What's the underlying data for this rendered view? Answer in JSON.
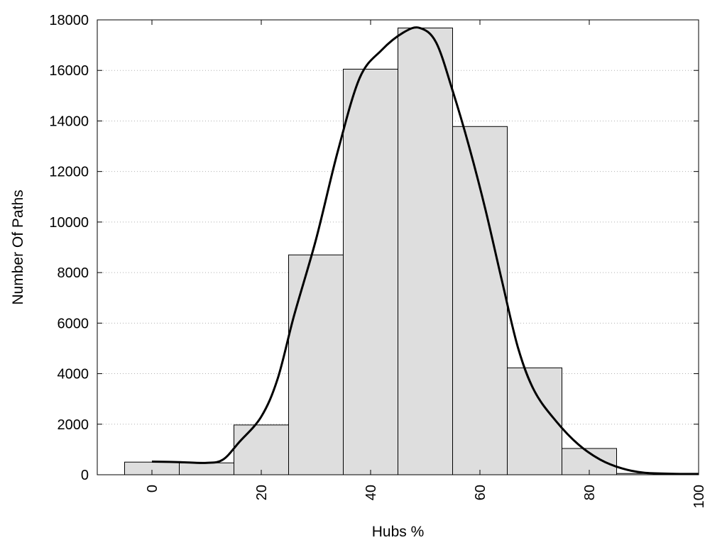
{
  "chart_data": {
    "type": "bar",
    "xlabel": "Hubs %",
    "ylabel": "Number Of Paths",
    "xlim": [
      -10,
      100
    ],
    "ylim": [
      0,
      18000
    ],
    "x_ticks": [
      "0",
      "20",
      "40",
      "60",
      "80",
      "100"
    ],
    "y_ticks": [
      "0",
      "2000",
      "4000",
      "6000",
      "8000",
      "10000",
      "12000",
      "14000",
      "16000",
      "18000"
    ],
    "grid": "horizontal-dotted",
    "bins": {
      "centers": [
        0,
        10,
        20,
        30,
        40,
        50,
        60,
        70,
        80,
        90
      ],
      "width": 10,
      "values": [
        500,
        470,
        1970,
        8700,
        16050,
        17680,
        13780,
        4230,
        1040,
        50
      ]
    },
    "density_curve": {
      "x": [
        0,
        5,
        10,
        13,
        16,
        20,
        23,
        26,
        30,
        34,
        38,
        42,
        46,
        49,
        52,
        55,
        58,
        61,
        64,
        67,
        70,
        74,
        78,
        82,
        86,
        90,
        95,
        100
      ],
      "y": [
        520,
        500,
        470,
        600,
        1300,
        2300,
        3800,
        6300,
        9300,
        12800,
        15700,
        16800,
        17500,
        17680,
        17100,
        15200,
        13000,
        10500,
        7700,
        5000,
        3300,
        2100,
        1200,
        600,
        250,
        80,
        40,
        30
      ]
    },
    "colors": {
      "bar_fill": "#dedede",
      "bar_stroke": "#000000",
      "curve": "#000000",
      "grid": "#b0b0b0"
    }
  }
}
